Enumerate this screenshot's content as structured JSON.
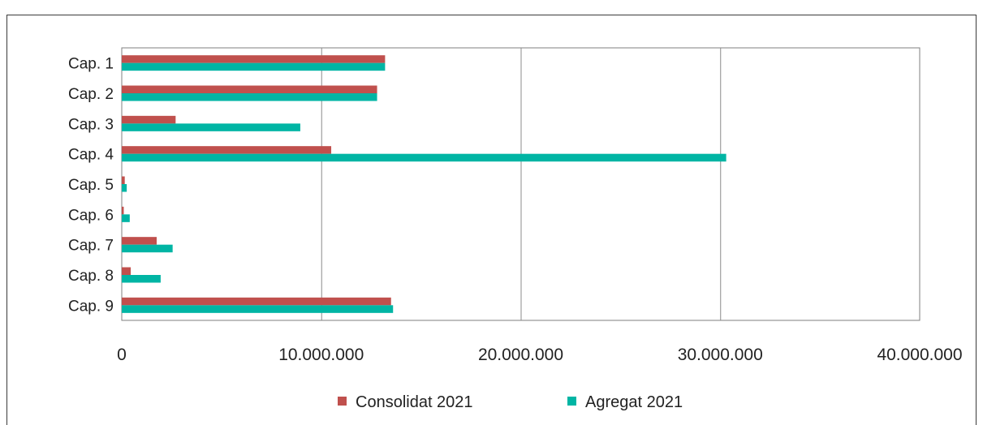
{
  "chart_data": {
    "type": "bar",
    "orientation": "horizontal",
    "title": "",
    "xlabel": "",
    "ylabel": "",
    "categories": [
      "Cap. 1",
      "Cap. 2",
      "Cap. 3",
      "Cap. 4",
      "Cap. 5",
      "Cap. 6",
      "Cap. 7",
      "Cap. 8",
      "Cap. 9"
    ],
    "x_ticks": [
      "0",
      "10.000.000",
      "20.000.000",
      "30.000.000",
      "40.000.000"
    ],
    "x_tick_values": [
      0,
      10000000,
      20000000,
      30000000,
      40000000
    ],
    "xlim": [
      0,
      40000000
    ],
    "grid": "vertical",
    "legend_position": "bottom",
    "series": [
      {
        "name": "Consolidat 2021",
        "color": "#c0504d",
        "values": [
          13200000,
          12800000,
          2700000,
          10500000,
          150000,
          100000,
          1750000,
          450000,
          13500000
        ]
      },
      {
        "name": "Agregat 2021",
        "color": "#00b5a4",
        "values": [
          13200000,
          12800000,
          8950000,
          30300000,
          250000,
          400000,
          2550000,
          1950000,
          13600000
        ]
      }
    ]
  }
}
